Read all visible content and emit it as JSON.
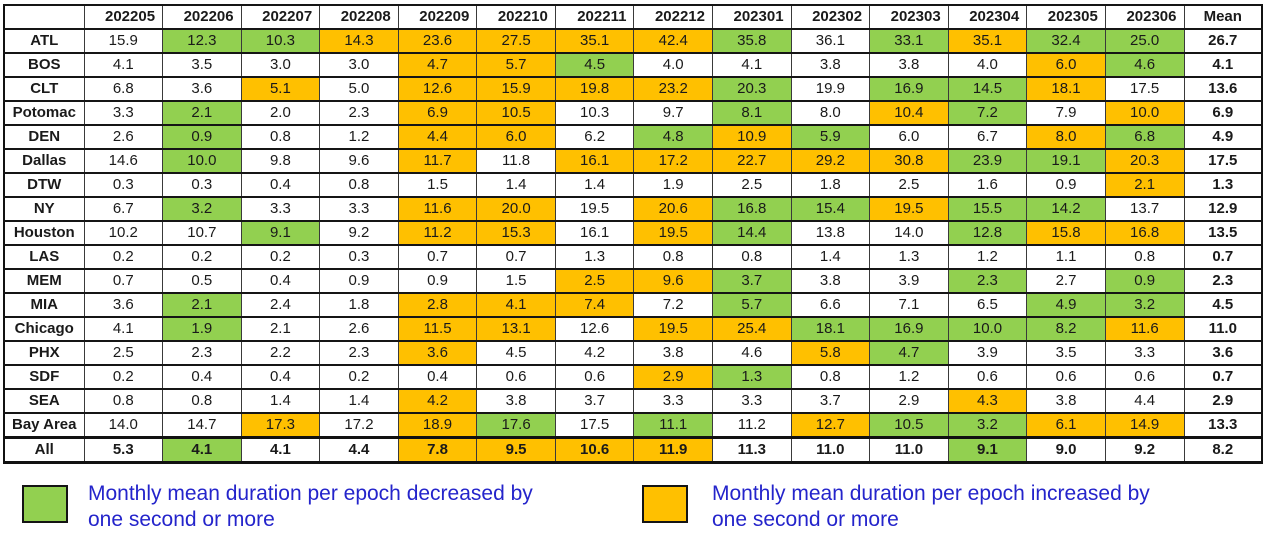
{
  "chart_data": {
    "type": "table",
    "columns": [
      "",
      "202205",
      "202206",
      "202207",
      "202208",
      "202209",
      "202210",
      "202211",
      "202212",
      "202301",
      "202302",
      "202303",
      "202304",
      "202305",
      "202306",
      "Mean"
    ],
    "highlight_codes": {
      "w": "none",
      "g": "decreased by one second or more",
      "o": "increased by one second or more"
    },
    "rows": [
      {
        "label": "ATL",
        "values": [
          "15.9",
          "12.3",
          "10.3",
          "14.3",
          "23.6",
          "27.5",
          "35.1",
          "42.4",
          "35.8",
          "36.1",
          "33.1",
          "35.1",
          "32.4",
          "25.0"
        ],
        "highlights": [
          "w",
          "g",
          "g",
          "o",
          "o",
          "o",
          "o",
          "o",
          "g",
          "w",
          "g",
          "o",
          "g",
          "g"
        ],
        "mean": "26.7"
      },
      {
        "label": "BOS",
        "values": [
          "4.1",
          "3.5",
          "3.0",
          "3.0",
          "4.7",
          "5.7",
          "4.5",
          "4.0",
          "4.1",
          "3.8",
          "3.8",
          "4.0",
          "6.0",
          "4.6"
        ],
        "highlights": [
          "w",
          "w",
          "w",
          "w",
          "o",
          "o",
          "g",
          "w",
          "w",
          "w",
          "w",
          "w",
          "o",
          "g"
        ],
        "mean": "4.1"
      },
      {
        "label": "CLT",
        "values": [
          "6.8",
          "3.6",
          "5.1",
          "5.0",
          "12.6",
          "15.9",
          "19.8",
          "23.2",
          "20.3",
          "19.9",
          "16.9",
          "14.5",
          "18.1",
          "17.5"
        ],
        "highlights": [
          "w",
          "w",
          "o",
          "w",
          "o",
          "o",
          "o",
          "o",
          "g",
          "w",
          "g",
          "g",
          "o",
          "w"
        ],
        "mean": "13.6"
      },
      {
        "label": "Potomac",
        "values": [
          "3.3",
          "2.1",
          "2.0",
          "2.3",
          "6.9",
          "10.5",
          "10.3",
          "9.7",
          "8.1",
          "8.0",
          "10.4",
          "7.2",
          "7.9",
          "10.0"
        ],
        "highlights": [
          "w",
          "g",
          "w",
          "w",
          "o",
          "o",
          "w",
          "w",
          "g",
          "w",
          "o",
          "g",
          "w",
          "o"
        ],
        "mean": "6.9"
      },
      {
        "label": "DEN",
        "values": [
          "2.6",
          "0.9",
          "0.8",
          "1.2",
          "4.4",
          "6.0",
          "6.2",
          "4.8",
          "10.9",
          "5.9",
          "6.0",
          "6.7",
          "8.0",
          "6.8"
        ],
        "highlights": [
          "w",
          "g",
          "w",
          "w",
          "o",
          "o",
          "w",
          "g",
          "o",
          "g",
          "w",
          "w",
          "o",
          "g"
        ],
        "mean": "4.9"
      },
      {
        "label": "Dallas",
        "values": [
          "14.6",
          "10.0",
          "9.8",
          "9.6",
          "11.7",
          "11.8",
          "16.1",
          "17.2",
          "22.7",
          "29.2",
          "30.8",
          "23.9",
          "19.1",
          "20.3"
        ],
        "highlights": [
          "w",
          "g",
          "w",
          "w",
          "o",
          "w",
          "o",
          "o",
          "o",
          "o",
          "o",
          "g",
          "g",
          "o"
        ],
        "mean": "17.5"
      },
      {
        "label": "DTW",
        "values": [
          "0.3",
          "0.3",
          "0.4",
          "0.8",
          "1.5",
          "1.4",
          "1.4",
          "1.9",
          "2.5",
          "1.8",
          "2.5",
          "1.6",
          "0.9",
          "2.1"
        ],
        "highlights": [
          "w",
          "w",
          "w",
          "w",
          "w",
          "w",
          "w",
          "w",
          "w",
          "w",
          "w",
          "w",
          "w",
          "o"
        ],
        "mean": "1.3"
      },
      {
        "label": "NY",
        "values": [
          "6.7",
          "3.2",
          "3.3",
          "3.3",
          "11.6",
          "20.0",
          "19.5",
          "20.6",
          "16.8",
          "15.4",
          "19.5",
          "15.5",
          "14.2",
          "13.7"
        ],
        "highlights": [
          "w",
          "g",
          "w",
          "w",
          "o",
          "o",
          "w",
          "o",
          "g",
          "g",
          "o",
          "g",
          "g",
          "w"
        ],
        "mean": "12.9"
      },
      {
        "label": "Houston",
        "values": [
          "10.2",
          "10.7",
          "9.1",
          "9.2",
          "11.2",
          "15.3",
          "16.1",
          "19.5",
          "14.4",
          "13.8",
          "14.0",
          "12.8",
          "15.8",
          "16.8"
        ],
        "highlights": [
          "w",
          "w",
          "g",
          "w",
          "o",
          "o",
          "w",
          "o",
          "g",
          "w",
          "w",
          "g",
          "o",
          "o"
        ],
        "mean": "13.5"
      },
      {
        "label": "LAS",
        "values": [
          "0.2",
          "0.2",
          "0.2",
          "0.3",
          "0.7",
          "0.7",
          "1.3",
          "0.8",
          "0.8",
          "1.4",
          "1.3",
          "1.2",
          "1.1",
          "0.8"
        ],
        "highlights": [
          "w",
          "w",
          "w",
          "w",
          "w",
          "w",
          "w",
          "w",
          "w",
          "w",
          "w",
          "w",
          "w",
          "w"
        ],
        "mean": "0.7"
      },
      {
        "label": "MEM",
        "values": [
          "0.7",
          "0.5",
          "0.4",
          "0.9",
          "0.9",
          "1.5",
          "2.5",
          "9.6",
          "3.7",
          "3.8",
          "3.9",
          "2.3",
          "2.7",
          "0.9"
        ],
        "highlights": [
          "w",
          "w",
          "w",
          "w",
          "w",
          "w",
          "o",
          "o",
          "g",
          "w",
          "w",
          "g",
          "w",
          "g"
        ],
        "mean": "2.3"
      },
      {
        "label": "MIA",
        "values": [
          "3.6",
          "2.1",
          "2.4",
          "1.8",
          "2.8",
          "4.1",
          "7.4",
          "7.2",
          "5.7",
          "6.6",
          "7.1",
          "6.5",
          "4.9",
          "3.2"
        ],
        "highlights": [
          "w",
          "g",
          "w",
          "w",
          "o",
          "o",
          "o",
          "w",
          "g",
          "w",
          "w",
          "w",
          "g",
          "g"
        ],
        "mean": "4.5"
      },
      {
        "label": "Chicago",
        "values": [
          "4.1",
          "1.9",
          "2.1",
          "2.6",
          "11.5",
          "13.1",
          "12.6",
          "19.5",
          "25.4",
          "18.1",
          "16.9",
          "10.0",
          "8.2",
          "11.6"
        ],
        "highlights": [
          "w",
          "g",
          "w",
          "w",
          "o",
          "o",
          "w",
          "o",
          "o",
          "g",
          "g",
          "g",
          "g",
          "o"
        ],
        "mean": "11.0"
      },
      {
        "label": "PHX",
        "values": [
          "2.5",
          "2.3",
          "2.2",
          "2.3",
          "3.6",
          "4.5",
          "4.2",
          "3.8",
          "4.6",
          "5.8",
          "4.7",
          "3.9",
          "3.5",
          "3.3"
        ],
        "highlights": [
          "w",
          "w",
          "w",
          "w",
          "o",
          "w",
          "w",
          "w",
          "w",
          "o",
          "g",
          "w",
          "w",
          "w"
        ],
        "mean": "3.6"
      },
      {
        "label": "SDF",
        "values": [
          "0.2",
          "0.4",
          "0.4",
          "0.2",
          "0.4",
          "0.6",
          "0.6",
          "2.9",
          "1.3",
          "0.8",
          "1.2",
          "0.6",
          "0.6",
          "0.6"
        ],
        "highlights": [
          "w",
          "w",
          "w",
          "w",
          "w",
          "w",
          "w",
          "o",
          "g",
          "w",
          "w",
          "w",
          "w",
          "w"
        ],
        "mean": "0.7"
      },
      {
        "label": "SEA",
        "values": [
          "0.8",
          "0.8",
          "1.4",
          "1.4",
          "4.2",
          "3.8",
          "3.7",
          "3.3",
          "3.3",
          "3.7",
          "2.9",
          "4.3",
          "3.8",
          "4.4"
        ],
        "highlights": [
          "w",
          "w",
          "w",
          "w",
          "o",
          "w",
          "w",
          "w",
          "w",
          "w",
          "w",
          "o",
          "w",
          "w"
        ],
        "mean": "2.9"
      },
      {
        "label": "Bay Area",
        "values": [
          "14.0",
          "14.7",
          "17.3",
          "17.2",
          "18.9",
          "17.6",
          "17.5",
          "11.1",
          "11.2",
          "12.7",
          "10.5",
          "3.2",
          "6.1",
          "14.9"
        ],
        "highlights": [
          "w",
          "w",
          "o",
          "w",
          "o",
          "g",
          "w",
          "g",
          "w",
          "o",
          "g",
          "g",
          "o",
          "o"
        ],
        "mean": "13.3"
      },
      {
        "label": "All",
        "values": [
          "5.3",
          "4.1",
          "4.1",
          "4.4",
          "7.8",
          "9.5",
          "10.6",
          "11.9",
          "11.3",
          "11.0",
          "11.0",
          "9.1",
          "9.0",
          "9.2"
        ],
        "highlights": [
          "w",
          "g",
          "w",
          "w",
          "o",
          "o",
          "o",
          "o",
          "w",
          "w",
          "w",
          "g",
          "w",
          "w"
        ],
        "mean": "8.2",
        "is_total": true
      }
    ]
  },
  "legend": {
    "decrease": {
      "line1": "Monthly mean duration per epoch decreased by",
      "line2": "one second or more"
    },
    "increase": {
      "line1": "Monthly mean duration per epoch increased by",
      "line2": "one second or more"
    }
  },
  "colors": {
    "decrease_green": "#92d050",
    "increase_orange": "#ffc000",
    "legend_text_blue": "#2424cb",
    "border_black": "#151515"
  }
}
